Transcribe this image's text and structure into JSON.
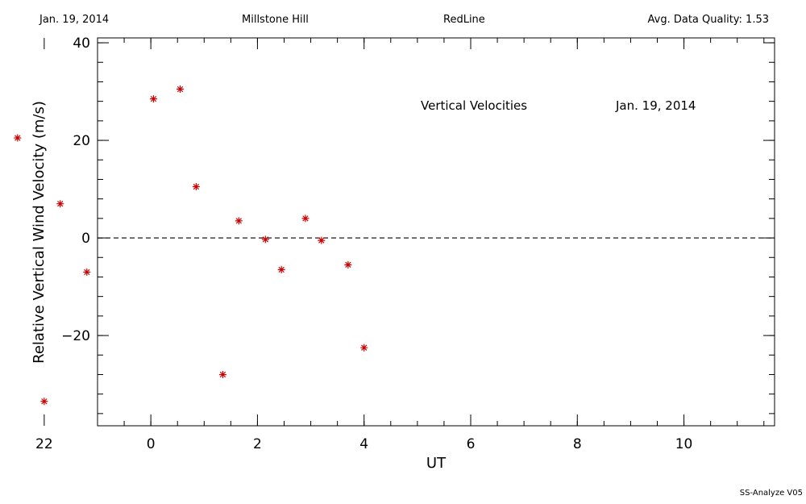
{
  "header": {
    "date": "Jan. 19, 2014",
    "site": "Millstone Hill",
    "line": "RedLine",
    "quality": "Avg. Data Quality: 1.53"
  },
  "footer": {
    "version": "SS-Analyze V05"
  },
  "chart_data": {
    "type": "scatter",
    "xlabel": "UT",
    "ylabel": "Relative Vertical Wind Velocity (m/s)",
    "annotations": [
      "Vertical Velocities",
      "Jan. 19, 2014"
    ],
    "xlim": [
      -1,
      11.7
    ],
    "ylim": [
      -38.5,
      41
    ],
    "x_ticks": [
      22,
      0,
      2,
      4,
      6,
      8,
      10
    ],
    "x_tick_labels": [
      "22",
      "0",
      "2",
      "4",
      "6",
      "8",
      "10"
    ],
    "y_ticks": [
      -20,
      0,
      20,
      40
    ],
    "y_tick_labels": [
      "−20",
      "0",
      "20",
      "40"
    ],
    "zero_line": "dashed",
    "marker": "asterisk",
    "marker_color": "#cc0000",
    "points": [
      {
        "x": "21.5",
        "y": 20.5
      },
      {
        "x": "22.0",
        "y": -33.5
      },
      {
        "x": "22.3",
        "y": 7.0
      },
      {
        "x": "22.8",
        "y": -7.0
      },
      {
        "x": "0.05",
        "y": 28.5
      },
      {
        "x": "0.55",
        "y": 30.5
      },
      {
        "x": "0.85",
        "y": 10.5
      },
      {
        "x": "1.35",
        "y": -28.0
      },
      {
        "x": "1.65",
        "y": 3.5
      },
      {
        "x": "2.15",
        "y": -0.3
      },
      {
        "x": "2.45",
        "y": -6.5
      },
      {
        "x": "2.9",
        "y": 4.0
      },
      {
        "x": "3.2",
        "y": -0.5
      },
      {
        "x": "3.7",
        "y": -5.5
      },
      {
        "x": "4.0",
        "y": -22.5
      }
    ]
  }
}
